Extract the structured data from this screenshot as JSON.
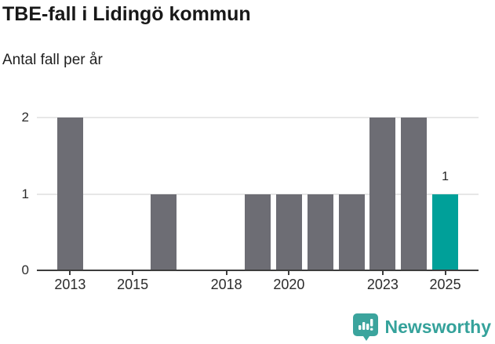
{
  "header": {
    "title": "TBE-fall i Lidingö kommun",
    "subtitle": "Antal fall per år"
  },
  "chart_data": {
    "type": "bar",
    "title": "TBE-fall i Lidingö kommun",
    "subtitle": "Antal fall per år",
    "xlabel": "",
    "ylabel": "",
    "categories": [
      2013,
      2014,
      2015,
      2016,
      2017,
      2018,
      2019,
      2020,
      2021,
      2022,
      2023,
      2024,
      2025
    ],
    "values": [
      2,
      0,
      0,
      1,
      0,
      0,
      1,
      1,
      1,
      1,
      2,
      2,
      1
    ],
    "highlight_index": 12,
    "value_labels": [
      {
        "index": 12,
        "text": "1"
      }
    ],
    "x_tick_years": [
      2013,
      2015,
      2018,
      2020,
      2023,
      2025
    ],
    "y_ticks": [
      0,
      1,
      2
    ],
    "y_gridlines": [
      1,
      2
    ],
    "ylim": [
      0,
      2
    ],
    "grid": true,
    "legend": "none",
    "colors": {
      "bar": "#6d6d74",
      "highlight": "#00a099",
      "axis": "#3d3d3d",
      "gridline": "#e7e7e7"
    }
  },
  "footer": {
    "brand": "Newsworthy",
    "logo_icon": "newsworthy-bars-icon",
    "brand_color": "#35a29b"
  }
}
